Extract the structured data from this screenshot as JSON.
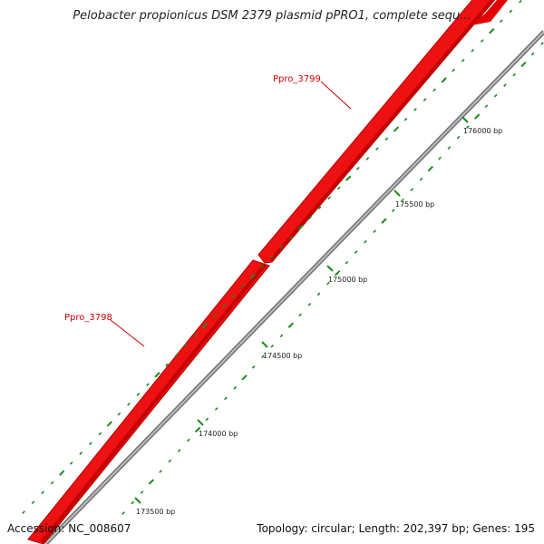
{
  "title": "Pelobacter propionicus DSM 2379 plasmid pPRO1, complete sequ...",
  "accession": "Accession: NC_008607",
  "summary": "Topology: circular; Length: 202,397 bp; Genes: 195",
  "genes": [
    {
      "label": "Ppro_3798"
    },
    {
      "label": "Ppro_3799"
    }
  ],
  "ticks": [
    {
      "label": "173500 bp"
    },
    {
      "label": "174000 bp"
    },
    {
      "label": "174500 bp"
    },
    {
      "label": "175000 bp"
    },
    {
      "label": "175500 bp"
    },
    {
      "label": "176000 bp"
    }
  ],
  "colors": {
    "gene": "#ee1111",
    "gene_dark": "#b00000",
    "backbone": "#888888",
    "tick": "#1a8a1a",
    "gene_label": "#cc0000"
  }
}
